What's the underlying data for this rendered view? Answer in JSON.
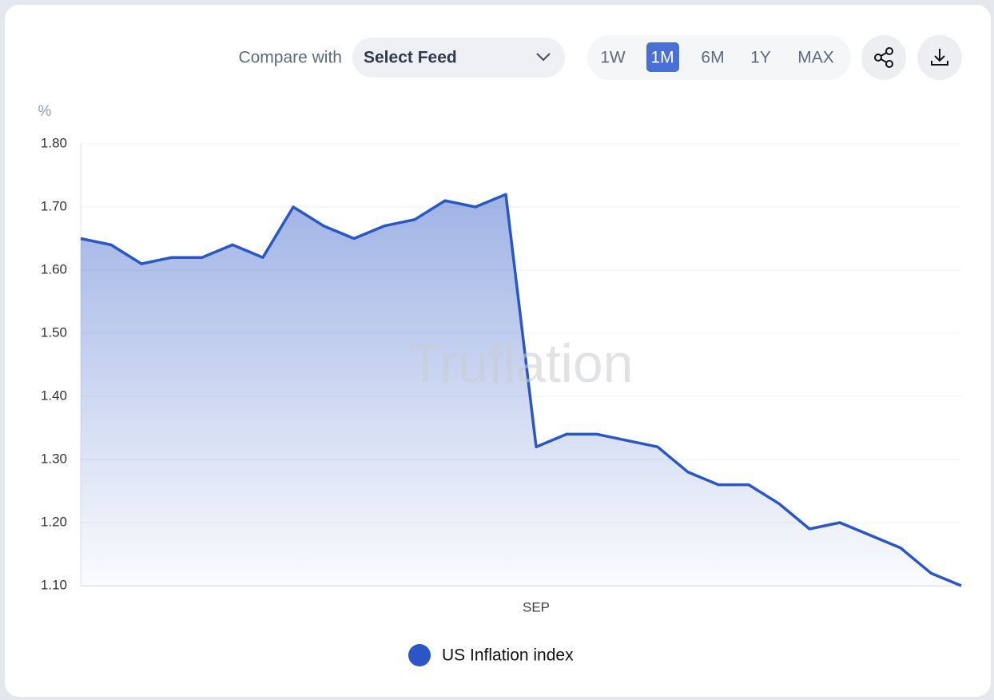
{
  "ui": {
    "compare_label": "Compare with",
    "select_placeholder": "Select Feed",
    "periods": [
      "1W",
      "1M",
      "6M",
      "1Y",
      "MAX"
    ],
    "watermark": "Truflation"
  },
  "chart_data": {
    "type": "area",
    "y_label": "%",
    "categories": [
      null,
      null,
      null,
      null,
      null,
      null,
      null,
      null,
      null,
      null,
      null,
      null,
      null,
      null,
      null,
      "SEP",
      null,
      null,
      null,
      null,
      null,
      null,
      null,
      null,
      null,
      null,
      null,
      null,
      null,
      null
    ],
    "series": [
      {
        "name": "US Inflation index",
        "color": "#2a56c6",
        "values": [
          1.65,
          1.64,
          1.61,
          1.62,
          1.62,
          1.64,
          1.62,
          1.7,
          1.67,
          1.65,
          1.67,
          1.68,
          1.71,
          1.7,
          1.72,
          1.32,
          1.34,
          1.34,
          1.33,
          1.32,
          1.28,
          1.26,
          1.26,
          1.23,
          1.19,
          1.2,
          1.18,
          1.16,
          1.12,
          1.1
        ]
      }
    ],
    "ylim": [
      1.1,
      1.8
    ],
    "yticks": [
      {
        "value": 1.1,
        "label": "1.10"
      },
      {
        "value": 1.2,
        "label": "1.20"
      },
      {
        "value": 1.3,
        "label": "1.30"
      },
      {
        "value": 1.4,
        "label": "1.40"
      },
      {
        "value": 1.5,
        "label": "1.50"
      },
      {
        "value": 1.6,
        "label": "1.60"
      },
      {
        "value": 1.7,
        "label": "1.70"
      },
      {
        "value": 1.8,
        "label": "1.80"
      }
    ],
    "grid": true
  }
}
